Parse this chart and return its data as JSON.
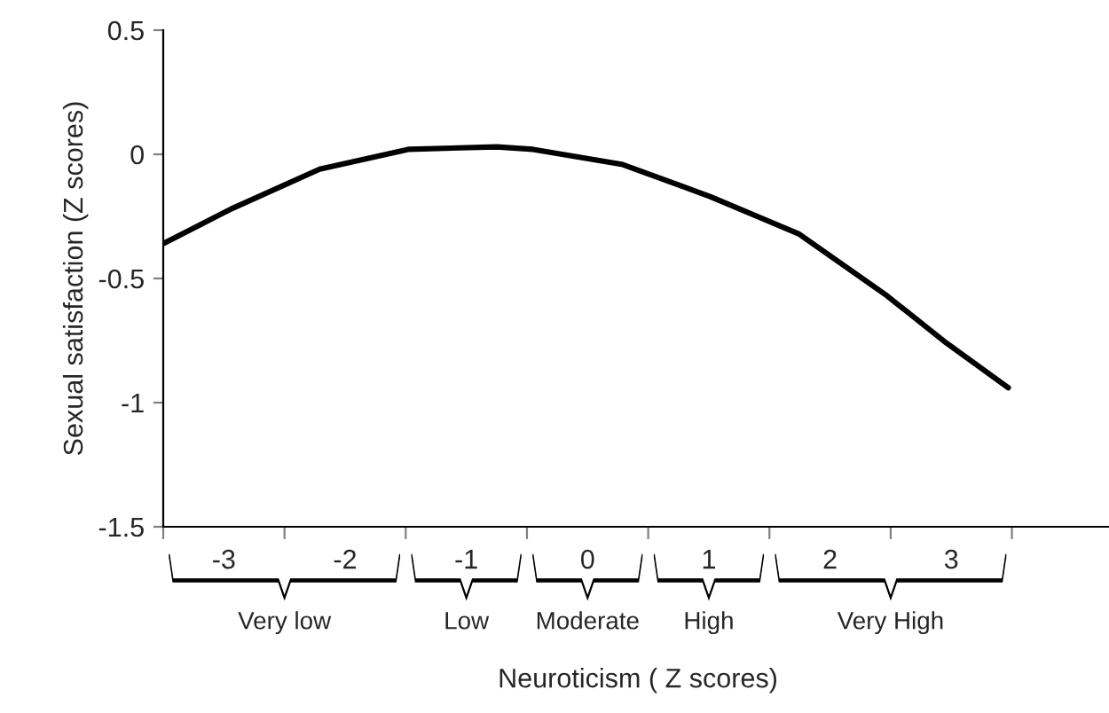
{
  "chart_data": {
    "type": "line",
    "xlabel": "Neuroticism ( Z scores)",
    "ylabel": "Sexual satisfaction (Z scores)",
    "x": [
      -3.5,
      -2.94,
      -2.21,
      -1.48,
      -0.75,
      -0.45,
      0.28,
      1.01,
      1.74,
      2.47,
      2.96,
      3.47
    ],
    "series": [
      {
        "color": "#000000",
        "values": [
          -0.36,
          -0.22,
          -0.06,
          0.02,
          0.03,
          0.02,
          -0.04,
          -0.17,
          -0.32,
          -0.57,
          -0.76,
          -0.94
        ]
      }
    ],
    "xlim": [
      -3.5,
      4.33
    ],
    "ylim": [
      -1.5,
      0.5
    ],
    "xticks": [
      {
        "value": -3.5,
        "label": null
      },
      {
        "value": -3,
        "label": "-3"
      },
      {
        "value": -2.5,
        "label": null
      },
      {
        "value": -2,
        "label": "-2"
      },
      {
        "value": -1.5,
        "label": null
      },
      {
        "value": -1,
        "label": "-1"
      },
      {
        "value": -0.5,
        "label": null
      },
      {
        "value": 0,
        "label": "0"
      },
      {
        "value": 0.5,
        "label": null
      },
      {
        "value": 1,
        "label": "1"
      },
      {
        "value": 1.5,
        "label": null
      },
      {
        "value": 2,
        "label": "2"
      },
      {
        "value": 2.5,
        "label": null
      },
      {
        "value": 3,
        "label": "3"
      },
      {
        "value": 3.5,
        "label": null
      }
    ],
    "yticks": [
      -1.5,
      -1,
      -0.5,
      0,
      0.5
    ],
    "grid": false,
    "legend": false,
    "marker": "none",
    "line_style": "solid",
    "annotations": [
      "Very low",
      "Low",
      "Moderate",
      "High",
      "Very High"
    ]
  }
}
